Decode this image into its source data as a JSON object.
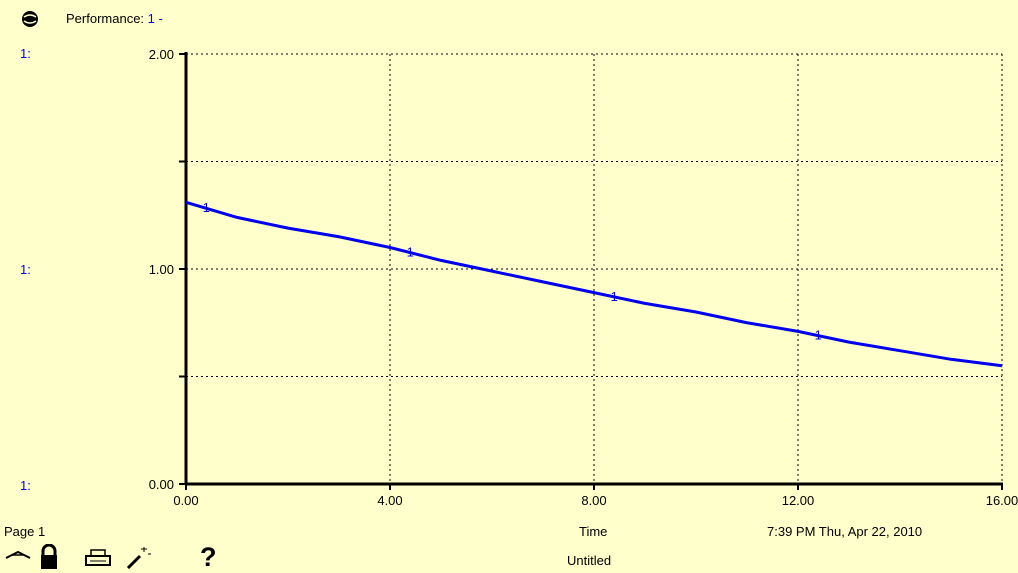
{
  "header": {
    "title_label": "Performance:",
    "series_marker": "1 -"
  },
  "scale_labels": {
    "top": "1:",
    "middle": "1:",
    "bottom": "1:"
  },
  "footer": {
    "page_label": "Page 1",
    "x_axis_title": "Time",
    "timestamp": "7:39 PM  Thu, Apr 22, 2010",
    "document_name": "Untitled"
  },
  "toolbar": {
    "help_label": "?"
  },
  "chart_data": {
    "type": "line",
    "title": "Performance",
    "xlabel": "Time",
    "ylabel": "",
    "xlim": [
      0,
      16
    ],
    "ylim": [
      0,
      2
    ],
    "x_ticks": [
      "0.00",
      "4.00",
      "8.00",
      "12.00",
      "16.00"
    ],
    "y_ticks": [
      "0.00",
      "1.00",
      "2.00"
    ],
    "grid": true,
    "series": [
      {
        "name": "1",
        "color": "#0000EE",
        "x": [
          0,
          1,
          2,
          3,
          4,
          5,
          6,
          7,
          8,
          9,
          10,
          11,
          12,
          13,
          14,
          15,
          16
        ],
        "values": [
          1.31,
          1.24,
          1.19,
          1.15,
          1.1,
          1.04,
          0.99,
          0.94,
          0.89,
          0.84,
          0.8,
          0.75,
          0.71,
          0.66,
          0.62,
          0.58,
          0.55
        ]
      }
    ],
    "marker_x": [
      0.3,
      4.3,
      8.3,
      12.3
    ]
  }
}
